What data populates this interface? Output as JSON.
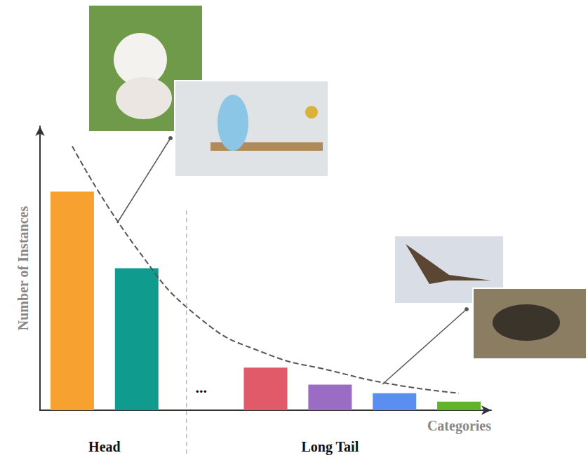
{
  "chart_data": {
    "type": "bar",
    "categories": [
      null,
      null,
      null,
      null,
      null,
      null,
      null
    ],
    "series": [
      {
        "type": "bar",
        "colors": [
          "#f7a130",
          "#0f9b8e",
          null,
          "#e05a6a",
          "#9b6cc4",
          "#5b8ef0",
          "#62b32a"
        ],
        "values": [
          77,
          50,
          null,
          15,
          9,
          6,
          3
        ]
      },
      {
        "type": "line",
        "color": "#555555",
        "line_style": "dashed",
        "values": [
          93,
          57,
          32,
          20,
          14,
          9,
          6
        ]
      }
    ],
    "ylim": [
      0,
      100
    ],
    "ylabel": "Number of Instances",
    "xlabel": "Categories",
    "annotations": [
      "Head",
      "Long Tail",
      "..."
    ],
    "tick_labels": false,
    "grid": false
  }
}
